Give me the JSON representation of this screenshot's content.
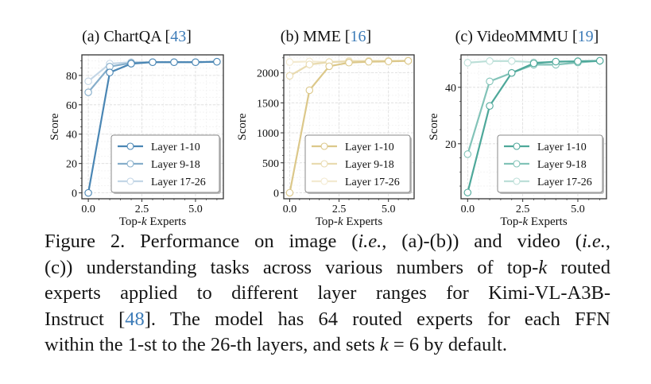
{
  "chart_data": [
    {
      "type": "line",
      "panel": "(a)",
      "title": "(a) ChartQA [43]",
      "title_prefix": "(a) ChartQA [",
      "title_cite": "43",
      "title_suffix": "]",
      "xlabel": "Top-k Experts",
      "ylabel": "Score",
      "x": [
        0,
        1,
        2,
        3,
        4,
        5,
        6
      ],
      "xlim": [
        -0.3,
        6.3
      ],
      "ylim": [
        -4,
        94
      ],
      "xticks": [
        0.0,
        2.5,
        5.0
      ],
      "xtick_labels": [
        "0.0",
        "2.5",
        "5.0"
      ],
      "yticks": [
        0,
        20,
        40,
        60,
        80
      ],
      "ytick_labels": [
        "0",
        "20",
        "40",
        "60",
        "80"
      ],
      "grid": true,
      "legend_position": "lower-right",
      "series": [
        {
          "name": "Layer 1-10",
          "color": "#4a86b4",
          "values": [
            0,
            82,
            88,
            89,
            89,
            89,
            89.3
          ]
        },
        {
          "name": "Layer 9-18",
          "color": "#86aecb",
          "values": [
            68.5,
            86,
            88.5,
            89,
            89,
            89,
            89.3
          ]
        },
        {
          "name": "Layer 17-26",
          "color": "#c3d6e6",
          "values": [
            76,
            88,
            89,
            89,
            89,
            89,
            89.3
          ]
        }
      ]
    },
    {
      "type": "line",
      "panel": "(b)",
      "title": "(b) MME [16]",
      "title_prefix": "(b) MME [",
      "title_cite": "16",
      "title_suffix": "]",
      "xlabel": "Top-k Experts",
      "ylabel": "Score",
      "x": [
        0,
        1,
        2,
        3,
        4,
        5,
        6
      ],
      "xlim": [
        -0.3,
        6.3
      ],
      "ylim": [
        -100,
        2300
      ],
      "xticks": [
        0.0,
        2.5,
        5.0
      ],
      "xtick_labels": [
        "0.0",
        "2.5",
        "5.0"
      ],
      "yticks": [
        0,
        500,
        1000,
        1500,
        2000
      ],
      "ytick_labels": [
        "0",
        "500",
        "1000",
        "1500",
        "2000"
      ],
      "grid": true,
      "legend_position": "lower-right",
      "series": [
        {
          "name": "Layer 1-10",
          "color": "#dcc88a",
          "values": [
            0,
            1710,
            2110,
            2170,
            2185,
            2190,
            2200
          ]
        },
        {
          "name": "Layer 9-18",
          "color": "#e9dbb0",
          "values": [
            1950,
            2140,
            2180,
            2190,
            2195,
            2195,
            2200
          ]
        },
        {
          "name": "Layer 17-26",
          "color": "#f3ead0",
          "values": [
            2180,
            2190,
            2180,
            2200,
            2200,
            2200,
            2200
          ]
        }
      ]
    },
    {
      "type": "line",
      "panel": "(c)",
      "title": "(c) VideoMMMU [19]",
      "title_prefix": "(c) VideoMMMU [",
      "title_cite": "19",
      "title_suffix": "]",
      "xlabel": "Top-k Experts",
      "ylabel": "Score",
      "x": [
        0,
        1,
        2,
        3,
        4,
        5,
        6
      ],
      "xlim": [
        -0.3,
        6.3
      ],
      "ylim": [
        0.5,
        51.5
      ],
      "xticks": [
        0.0,
        2.5,
        5.0
      ],
      "xtick_labels": [
        "0.0",
        "2.5",
        "5.0"
      ],
      "yticks": [
        20,
        40
      ],
      "ytick_labels": [
        "20",
        "40"
      ],
      "grid": true,
      "legend_position": "lower-right",
      "series": [
        {
          "name": "Layer 1-10",
          "color": "#4ea89a",
          "values": [
            2.7,
            33.4,
            45.1,
            48.5,
            49.1,
            49.2,
            49.4
          ]
        },
        {
          "name": "Layer 9-18",
          "color": "#82c3b8",
          "values": [
            16.3,
            42.1,
            45.1,
            48.0,
            48.0,
            48.8,
            49.4
          ]
        },
        {
          "name": "Layer 17-26",
          "color": "#bcdfd8",
          "values": [
            48.7,
            49.3,
            49.3,
            48.9,
            49.0,
            49.3,
            49.4
          ]
        }
      ]
    }
  ],
  "caption": {
    "lines": [
      [
        {
          "t": "Figure 2.  Performance on image ("
        },
        {
          "t": "i.e.",
          "style": "it"
        },
        {
          "t": ", (a)-(b)) and video ("
        },
        {
          "t": "i.e.",
          "style": "it"
        },
        {
          "t": ","
        }
      ],
      [
        {
          "t": "(c)) understanding tasks across various numbers of top-"
        },
        {
          "t": "k",
          "style": "it"
        },
        {
          "t": " routed"
        }
      ],
      [
        {
          "t": "experts applied to different layer ranges for Kimi-VL-A3B-"
        }
      ],
      [
        {
          "t": "Instruct ["
        },
        {
          "t": "48",
          "style": "cite"
        },
        {
          "t": "].  The model has 64 routed experts for each FFN"
        }
      ],
      [
        {
          "t": "within the 1-st to the 26-th layers, and sets "
        },
        {
          "t": "k",
          "style": "it"
        },
        {
          "t": " = 6 by default."
        }
      ]
    ]
  }
}
